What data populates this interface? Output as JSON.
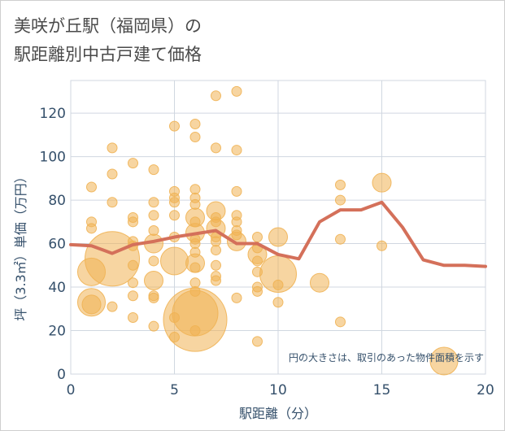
{
  "title_line1": "美咲が丘駅（福岡県）の",
  "title_line2": "駅距離別中古戸建て価格",
  "colors": {
    "bubble_fill": "#f0b354",
    "line": "#d4705a",
    "grid": "#d0d7e0",
    "axis_text": "#35506b"
  },
  "chart_data": {
    "type": "scatter",
    "title": "美咲が丘駅（福岡県）の駅距離別中古戸建て価格",
    "xlabel": "駅距離（分）",
    "ylabel": "坪（3.3㎡）単価（万円）",
    "xlim": [
      0,
      20
    ],
    "ylim": [
      0,
      135
    ],
    "x_ticks": [
      0,
      5,
      10,
      15,
      20
    ],
    "y_ticks": [
      0,
      20,
      40,
      60,
      80,
      100,
      120
    ],
    "grid": true,
    "note": "円の大きさは、取引のあった物件面積を示す",
    "series": [
      {
        "type": "line",
        "x": [
          0,
          1,
          2,
          3,
          4,
          5,
          6,
          7,
          8,
          9,
          10,
          11,
          12,
          13,
          14,
          15,
          16,
          17,
          18,
          19,
          20
        ],
        "values": [
          59.5,
          59,
          55.5,
          59.5,
          61,
          63,
          64.5,
          66,
          60,
          60,
          55,
          53,
          70,
          75.5,
          75.5,
          79,
          67.5,
          52.5,
          50,
          50,
          49.5
        ]
      },
      {
        "type": "bubble",
        "points": [
          {
            "x": 1,
            "y": 86,
            "s": 1
          },
          {
            "x": 1,
            "y": 70,
            "s": 1
          },
          {
            "x": 1,
            "y": 67,
            "s": 1
          },
          {
            "x": 1,
            "y": 47,
            "s": 3
          },
          {
            "x": 1,
            "y": 33,
            "s": 3
          },
          {
            "x": 1,
            "y": 32,
            "s": 2
          },
          {
            "x": 2,
            "y": 104,
            "s": 1
          },
          {
            "x": 2,
            "y": 92,
            "s": 1
          },
          {
            "x": 2,
            "y": 79,
            "s": 1
          },
          {
            "x": 2,
            "y": 53,
            "s": 6
          },
          {
            "x": 2,
            "y": 31,
            "s": 1
          },
          {
            "x": 3,
            "y": 97,
            "s": 1
          },
          {
            "x": 3,
            "y": 72,
            "s": 1
          },
          {
            "x": 3,
            "y": 70,
            "s": 1
          },
          {
            "x": 3,
            "y": 61,
            "s": 1
          },
          {
            "x": 3,
            "y": 59,
            "s": 1
          },
          {
            "x": 3,
            "y": 50,
            "s": 1
          },
          {
            "x": 3,
            "y": 42,
            "s": 1
          },
          {
            "x": 3,
            "y": 36,
            "s": 1
          },
          {
            "x": 3,
            "y": 26,
            "s": 1
          },
          {
            "x": 4,
            "y": 94,
            "s": 1
          },
          {
            "x": 4,
            "y": 79,
            "s": 1
          },
          {
            "x": 4,
            "y": 73,
            "s": 1
          },
          {
            "x": 4,
            "y": 66,
            "s": 1
          },
          {
            "x": 4,
            "y": 60,
            "s": 2
          },
          {
            "x": 4,
            "y": 52,
            "s": 1
          },
          {
            "x": 4,
            "y": 43,
            "s": 2
          },
          {
            "x": 4,
            "y": 36,
            "s": 1
          },
          {
            "x": 4,
            "y": 35,
            "s": 1
          },
          {
            "x": 4,
            "y": 22,
            "s": 1
          },
          {
            "x": 5,
            "y": 114,
            "s": 1
          },
          {
            "x": 5,
            "y": 84,
            "s": 1
          },
          {
            "x": 5,
            "y": 81,
            "s": 1
          },
          {
            "x": 5,
            "y": 79,
            "s": 1
          },
          {
            "x": 5,
            "y": 73,
            "s": 1
          },
          {
            "x": 5,
            "y": 63,
            "s": 1
          },
          {
            "x": 5,
            "y": 52,
            "s": 3
          },
          {
            "x": 5,
            "y": 26,
            "s": 1
          },
          {
            "x": 5,
            "y": 17,
            "s": 1
          },
          {
            "x": 6,
            "y": 115,
            "s": 1
          },
          {
            "x": 6,
            "y": 109,
            "s": 1
          },
          {
            "x": 6,
            "y": 85,
            "s": 1
          },
          {
            "x": 6,
            "y": 81,
            "s": 1
          },
          {
            "x": 6,
            "y": 78,
            "s": 1
          },
          {
            "x": 6,
            "y": 72,
            "s": 2
          },
          {
            "x": 6,
            "y": 70,
            "s": 1
          },
          {
            "x": 6,
            "y": 65,
            "s": 2
          },
          {
            "x": 6,
            "y": 62,
            "s": 1
          },
          {
            "x": 6,
            "y": 60,
            "s": 1
          },
          {
            "x": 6,
            "y": 56,
            "s": 1
          },
          {
            "x": 6,
            "y": 51,
            "s": 2
          },
          {
            "x": 6,
            "y": 49,
            "s": 1
          },
          {
            "x": 6,
            "y": 42,
            "s": 1
          },
          {
            "x": 6,
            "y": 38,
            "s": 1
          },
          {
            "x": 6,
            "y": 28,
            "s": 5
          },
          {
            "x": 6,
            "y": 25,
            "s": 7
          },
          {
            "x": 6,
            "y": 20,
            "s": 1
          },
          {
            "x": 7,
            "y": 128,
            "s": 1
          },
          {
            "x": 7,
            "y": 104,
            "s": 1
          },
          {
            "x": 7,
            "y": 75,
            "s": 2
          },
          {
            "x": 7,
            "y": 72,
            "s": 1
          },
          {
            "x": 7,
            "y": 70,
            "s": 1
          },
          {
            "x": 7,
            "y": 67,
            "s": 2
          },
          {
            "x": 7,
            "y": 63,
            "s": 1
          },
          {
            "x": 7,
            "y": 61,
            "s": 1
          },
          {
            "x": 7,
            "y": 57,
            "s": 1
          },
          {
            "x": 7,
            "y": 50,
            "s": 1
          },
          {
            "x": 7,
            "y": 45,
            "s": 1
          },
          {
            "x": 7,
            "y": 43,
            "s": 1
          },
          {
            "x": 8,
            "y": 130,
            "s": 1
          },
          {
            "x": 8,
            "y": 103,
            "s": 1
          },
          {
            "x": 8,
            "y": 84,
            "s": 1
          },
          {
            "x": 8,
            "y": 73,
            "s": 1
          },
          {
            "x": 8,
            "y": 70,
            "s": 1
          },
          {
            "x": 8,
            "y": 66,
            "s": 1
          },
          {
            "x": 8,
            "y": 64,
            "s": 1
          },
          {
            "x": 8,
            "y": 61,
            "s": 2
          },
          {
            "x": 8,
            "y": 35,
            "s": 1
          },
          {
            "x": 9,
            "y": 63,
            "s": 1
          },
          {
            "x": 9,
            "y": 58,
            "s": 1
          },
          {
            "x": 9,
            "y": 55,
            "s": 2
          },
          {
            "x": 9,
            "y": 52,
            "s": 1
          },
          {
            "x": 9,
            "y": 47,
            "s": 1
          },
          {
            "x": 9,
            "y": 40,
            "s": 1
          },
          {
            "x": 9,
            "y": 38,
            "s": 1
          },
          {
            "x": 9,
            "y": 15,
            "s": 1
          },
          {
            "x": 10,
            "y": 63,
            "s": 2
          },
          {
            "x": 10,
            "y": 46,
            "s": 4
          },
          {
            "x": 10,
            "y": 41,
            "s": 1
          },
          {
            "x": 10,
            "y": 33,
            "s": 1
          },
          {
            "x": 12,
            "y": 42,
            "s": 2
          },
          {
            "x": 13,
            "y": 87,
            "s": 1
          },
          {
            "x": 13,
            "y": 80,
            "s": 1
          },
          {
            "x": 13,
            "y": 62,
            "s": 1
          },
          {
            "x": 13,
            "y": 24,
            "s": 1
          },
          {
            "x": 15,
            "y": 88,
            "s": 2
          },
          {
            "x": 15,
            "y": 59,
            "s": 1
          },
          {
            "x": 18,
            "y": 6,
            "s": 3
          }
        ]
      }
    ]
  }
}
